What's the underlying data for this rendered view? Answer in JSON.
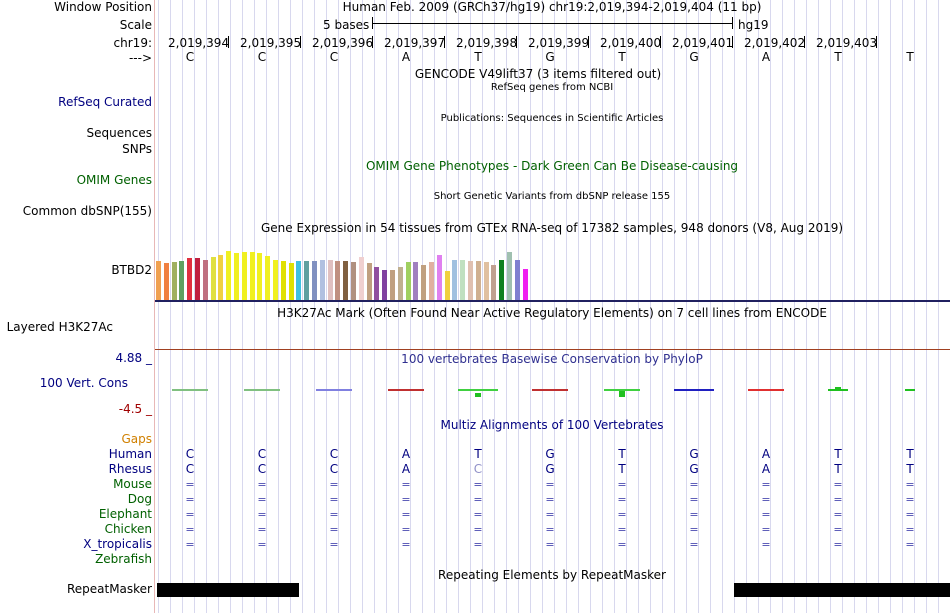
{
  "labels": {
    "window_position": "Window Position",
    "scale": "Scale",
    "chrom": "chr19:",
    "arrow": "--->",
    "refseq": "RefSeq Curated",
    "sequences": "Sequences",
    "snps": "SNPs",
    "omim": "OMIM Genes",
    "common_dbsnp": "Common dbSNP(155)",
    "gtex_gene": "BTBD2",
    "h3k27ac": "Layered H3K27Ac",
    "cons_max": "4.88 _",
    "cons_label": "100 Vert. Cons",
    "cons_min": "-4.5 _",
    "gaps": "Gaps",
    "species": [
      "Human",
      "Rhesus",
      "Mouse",
      "Dog",
      "Elephant",
      "Chicken",
      "X_tropicalis",
      "Zebrafish"
    ],
    "repeatmasker": "RepeatMasker"
  },
  "header": {
    "position_text": "Human Feb. 2009 (GRCh37/hg19)   chr19:2,019,394-2,019,404 (11 bp)",
    "scale_text": "5 bases",
    "assembly": "hg19",
    "coords": [
      "2,019,394",
      "2,019,395",
      "2,019,396",
      "2,019,397",
      "2,019,398",
      "2,019,399",
      "2,019,400",
      "2,019,401",
      "2,019,402",
      "2,019,403"
    ],
    "bases": [
      "C",
      "C",
      "C",
      "A",
      "T",
      "G",
      "T",
      "G",
      "A",
      "T",
      "T"
    ]
  },
  "tracks": {
    "gencode": "GENCODE V49lift37 (3 items filtered out)",
    "refseq_title": "RefSeq genes from NCBI",
    "publications": "Publications: Sequences in Scientific Articles",
    "omim_title": "OMIM Gene Phenotypes - Dark Green Can Be Disease-causing",
    "dbsnp_title": "Short Genetic Variants from dbSNP release 155",
    "gtex_title": "Gene Expression in 54 tissues from GTEx RNA-seq of 17382 samples, 948 donors (V8, Aug 2019)",
    "h3k27ac_title": "H3K27Ac Mark (Often Found Near Active Regulatory Elements) on 7 cell lines from ENCODE",
    "cons_title": "100 vertebrates Basewise Conservation by PhyloP",
    "multiz_title": "Multiz Alignments of 100 Vertebrates",
    "repeat_title": "Repeating Elements by RepeatMasker"
  },
  "multiz": {
    "human": [
      "C",
      "C",
      "C",
      "A",
      "T",
      "G",
      "T",
      "G",
      "A",
      "T",
      "T"
    ],
    "rhesus": [
      "C",
      "C",
      "C",
      "A",
      "C",
      "G",
      "T",
      "G",
      "A",
      "T",
      "T"
    ],
    "eq": "="
  },
  "colors": {
    "gtex": [
      "#f0a050",
      "#f08040",
      "#a0b060",
      "#60a060",
      "#e03040",
      "#c02040",
      "#c07080",
      "#e0e040",
      "#f0d040",
      "#f0f020",
      "#f0f020",
      "#f0f020",
      "#f0f020",
      "#f0f020",
      "#f0f020",
      "#f0f020",
      "#e0e000",
      "#e0e000",
      "#40c0e0",
      "#60a0a0",
      "#8090c0",
      "#b0c0e0",
      "#e0c0c0",
      "#c09080",
      "#806040",
      "#b09080",
      "#f0d0d0",
      "#c0a080",
      "#9050a0",
      "#8040a0",
      "#c0a080",
      "#c0b090",
      "#a0d060",
      "#a080c0",
      "#c0a080",
      "#e0b0a0",
      "#e080f0",
      "#f0d040",
      "#a0c0e0",
      "#c0e0c0",
      "#e0c0b0",
      "#d0b090",
      "#e0c0a0",
      "#c0a090",
      "#108020",
      "#a0c0b0",
      "#8080d0",
      "#f020f0"
    ],
    "gtex_heights": [
      0.62,
      0.58,
      0.6,
      0.62,
      0.66,
      0.66,
      0.64,
      0.68,
      0.72,
      0.78,
      0.74,
      0.76,
      0.76,
      0.74,
      0.7,
      0.64,
      0.62,
      0.58,
      0.62,
      0.62,
      0.62,
      0.64,
      0.64,
      0.62,
      0.62,
      0.6,
      0.68,
      0.58,
      0.52,
      0.48,
      0.48,
      0.52,
      0.6,
      0.6,
      0.56,
      0.6,
      0.72,
      0.46,
      0.64,
      0.64,
      0.62,
      0.62,
      0.6,
      0.56,
      0.64,
      0.76,
      0.64,
      0.5
    ]
  }
}
